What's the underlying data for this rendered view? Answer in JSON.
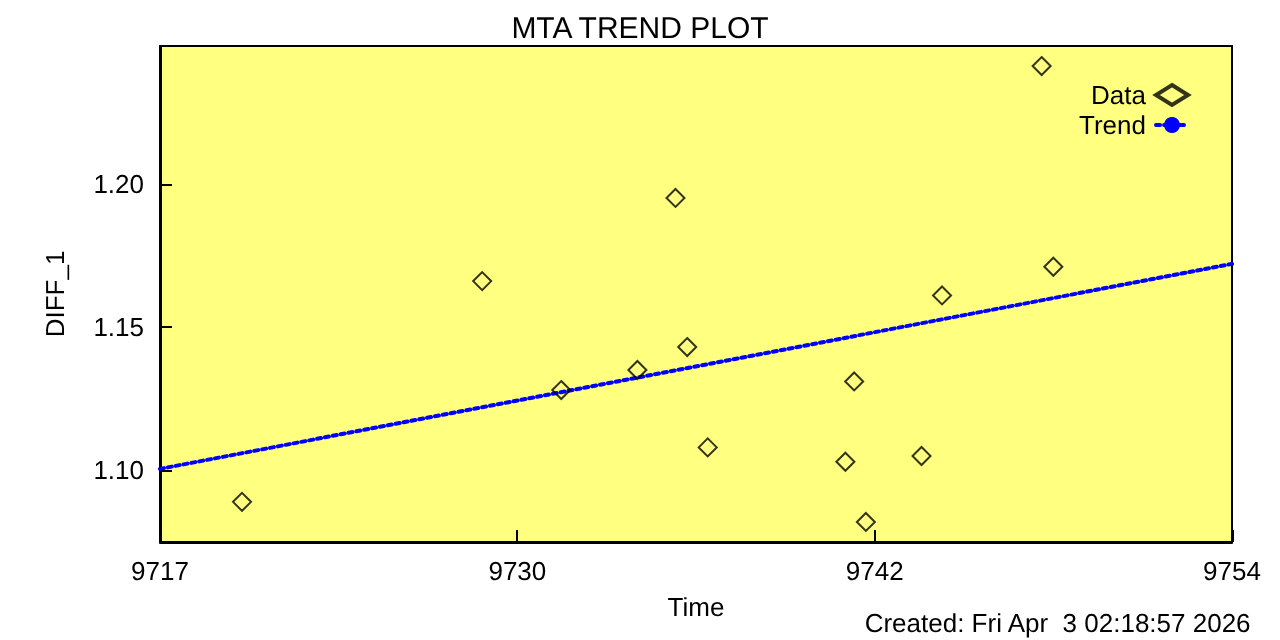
{
  "chart_data": {
    "type": "scatter",
    "title": "MTA TREND PLOT",
    "xlabel": "Time",
    "ylabel": "DIFF_1",
    "annotations": [
      "Created: Fri Apr  3 02:18:57 2026"
    ],
    "x": [
      9720.1,
      9728.3,
      9731.0,
      9733.6,
      9734.9,
      9735.3,
      9736.0,
      9740.7,
      9741.0,
      9741.4,
      9743.3,
      9744.0,
      9747.4,
      9747.8
    ],
    "series": [
      {
        "name": "Data",
        "color": "#000000",
        "marker": "diamond",
        "values": [
          1.089,
          1.166,
          1.128,
          1.135,
          1.195,
          1.143,
          1.108,
          1.103,
          1.131,
          1.082,
          1.105,
          1.161,
          1.241,
          1.171
        ]
      },
      {
        "name": "Trend",
        "type": "line",
        "color": "#0000ff",
        "marker": "none",
        "line_style": "dotted",
        "x": [
          9717.3,
          9753.9
        ],
        "values": [
          1.1005,
          1.172
        ]
      }
    ],
    "xlim": [
      9717.3,
      9753.9
    ],
    "xticks": [
      {
        "value": 9717.3,
        "label": "9717"
      },
      {
        "value": 9729.5,
        "label": "9730"
      },
      {
        "value": 9741.7,
        "label": "9742"
      },
      {
        "value": 9753.9,
        "label": "9754"
      }
    ],
    "ylim": [
      1.075,
      1.248
    ],
    "yticks": [
      {
        "value": 1.1,
        "label": "1.10"
      },
      {
        "value": 1.15,
        "label": "1.15"
      },
      {
        "value": 1.2,
        "label": "1.20"
      }
    ],
    "grid": false,
    "legend": "top right"
  }
}
